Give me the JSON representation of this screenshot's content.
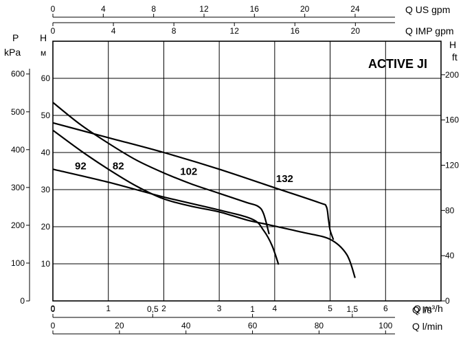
{
  "chart_data": {
    "type": "line",
    "title": "ACTIVE JI",
    "grid": true,
    "primary_x": {
      "label": "Q m³/h",
      "ticks": [
        0,
        1,
        2,
        3,
        4,
        5,
        6
      ],
      "range": [
        0,
        7
      ]
    },
    "left_y_head": {
      "label_top": "H",
      "label_bottom": "м",
      "ticks": [
        10,
        20,
        30,
        40,
        50,
        60
      ],
      "range": [
        0,
        70
      ]
    },
    "left_y_pressure": {
      "label_top": "P",
      "label_bottom": "kPa",
      "ticks": [
        0,
        100,
        200,
        300,
        400,
        500,
        600
      ]
    },
    "right_y_ft": {
      "label_top": "H",
      "label_bottom": "ft",
      "ticks": [
        0,
        40,
        80,
        120,
        160,
        200
      ],
      "tick_labels": [
        "0",
        "40",
        "80",
        "120",
        "160",
        "200"
      ]
    },
    "top_x_us": {
      "label": "Q US gpm",
      "ticks": [
        0,
        4,
        8,
        12,
        16,
        20,
        24
      ]
    },
    "top_x_imp": {
      "label": "Q IMP gpm",
      "ticks": [
        0,
        4,
        8,
        12,
        16,
        20
      ]
    },
    "bottom_x_ls": {
      "label": "Q l/s",
      "ticks": [
        0,
        0.5,
        1,
        1.5
      ],
      "tick_labels": [
        "0",
        "0,5",
        "1",
        "1,5"
      ]
    },
    "bottom_x_lmin": {
      "label": "Q l/min",
      "ticks": [
        0,
        20,
        40,
        60,
        80,
        100
      ],
      "tick_labels": [
        "0",
        "20",
        "40",
        "60",
        "80",
        "100"
      ]
    },
    "series": [
      {
        "name": "92",
        "label_pos": [
          0.5,
          35.5
        ],
        "points": [
          [
            0,
            35.5
          ],
          [
            1,
            32
          ],
          [
            2,
            28
          ],
          [
            3,
            24.5
          ],
          [
            3.6,
            22
          ],
          [
            3.8,
            19
          ],
          [
            3.95,
            15
          ],
          [
            4.07,
            9.8
          ]
        ]
      },
      {
        "name": "82",
        "label_pos": [
          1.18,
          35.5
        ],
        "points": [
          [
            0,
            46
          ],
          [
            0.5,
            40.5
          ],
          [
            1,
            35.5
          ],
          [
            1.5,
            31
          ],
          [
            2,
            27.5
          ],
          [
            2.5,
            25.5
          ],
          [
            3,
            24
          ],
          [
            3.5,
            21.8
          ],
          [
            3.9,
            20.5
          ],
          [
            4.5,
            18.5
          ],
          [
            5,
            16.6
          ],
          [
            5.3,
            12.5
          ],
          [
            5.45,
            6.2
          ]
        ]
      },
      {
        "name": "102",
        "label_pos": [
          2.45,
          34
        ],
        "points": [
          [
            0,
            53.5
          ],
          [
            0.5,
            47.5
          ],
          [
            1,
            42.5
          ],
          [
            1.5,
            38
          ],
          [
            2,
            34.5
          ],
          [
            2.5,
            31.5
          ],
          [
            3,
            29
          ],
          [
            3.5,
            26.5
          ],
          [
            3.7,
            25.5
          ],
          [
            3.8,
            23.5
          ],
          [
            3.9,
            18
          ]
        ]
      },
      {
        "name": "132",
        "label_pos": [
          4.18,
          32
        ],
        "points": [
          [
            0,
            48
          ],
          [
            1,
            44
          ],
          [
            2,
            40
          ],
          [
            3,
            35.5
          ],
          [
            4,
            30.5
          ],
          [
            4.8,
            26.5
          ],
          [
            4.93,
            25.5
          ],
          [
            4.97,
            22
          ],
          [
            5,
            19
          ],
          [
            5.06,
            16.5
          ]
        ]
      }
    ]
  }
}
